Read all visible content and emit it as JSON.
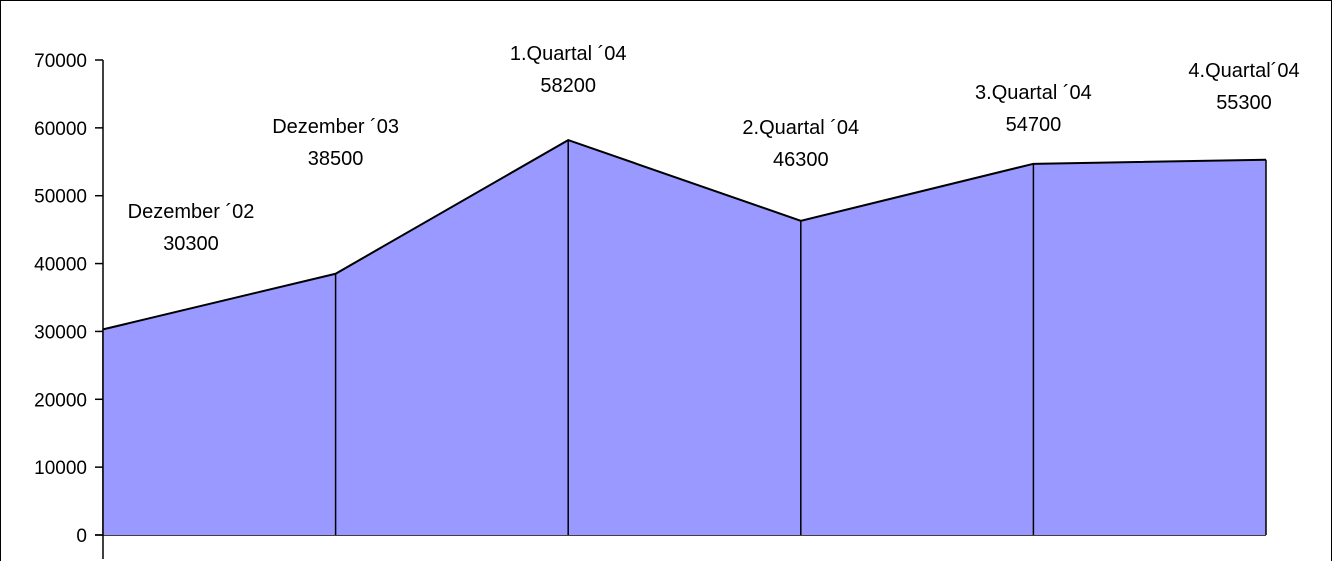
{
  "chart_data": {
    "type": "area",
    "title": "",
    "xlabel": "",
    "ylabel": "",
    "ylim": [
      0,
      70000
    ],
    "yticks": [
      0,
      10000,
      20000,
      30000,
      40000,
      50000,
      60000,
      70000
    ],
    "grid": false,
    "legend": "none",
    "fill_color": "#9999ff",
    "line_color": "#000000",
    "points": [
      {
        "label": "Dezember ´02",
        "value": 30300
      },
      {
        "label": "Dezember ´03",
        "value": 38500
      },
      {
        "label": "1.Quartal ´04",
        "value": 58200
      },
      {
        "label": "2.Quartal ´04",
        "value": 46300
      },
      {
        "label": "3.Quartal ´04",
        "value": 54700
      },
      {
        "label": "4.Quartal´04",
        "value": 55300
      }
    ]
  }
}
